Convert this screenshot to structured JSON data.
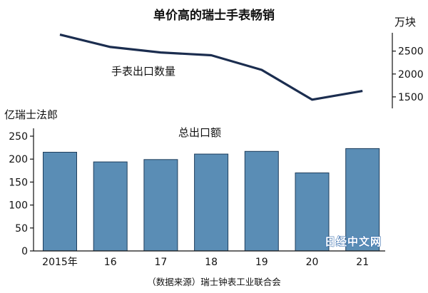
{
  "chart_data": [
    {
      "type": "line",
      "title": "单价高的瑞士手表畅销",
      "series_label": "手表出口数量",
      "unit": "万块",
      "categories": [
        "2015年",
        "16",
        "17",
        "18",
        "19",
        "20",
        "21"
      ],
      "values": [
        2860,
        2590,
        2470,
        2410,
        2090,
        1440,
        1630
      ],
      "ylim": [
        1250,
        2900
      ],
      "yticks": [
        1500,
        2000,
        2500
      ],
      "axis_side": "right"
    },
    {
      "type": "bar",
      "series_label": "总出口额",
      "unit": "亿瑞士法郎",
      "categories": [
        "2015年",
        "16",
        "17",
        "18",
        "19",
        "20",
        "21"
      ],
      "values": [
        215,
        194,
        199,
        211,
        217,
        170,
        223
      ],
      "ylim": [
        0,
        250
      ],
      "yticks": [
        0,
        50,
        100,
        150,
        200,
        250
      ]
    }
  ],
  "source": "（数据来源）瑞士钟表工业联合会",
  "watermark": "日经中文网",
  "colors": {
    "bar_fill": "#5a8db5",
    "bar_stroke": "#1f3e5c",
    "line": "#1b2d4f"
  }
}
